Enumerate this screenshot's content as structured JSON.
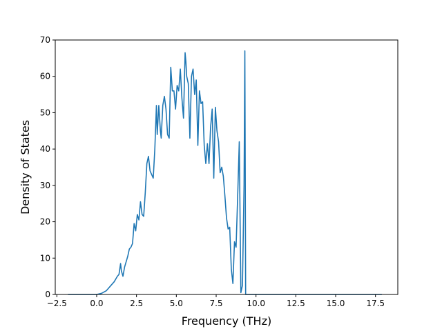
{
  "chart_data": {
    "type": "line",
    "title": "",
    "xlabel": "Frequency (THz)",
    "ylabel": "Density of States",
    "xlim": [
      -2.6,
      18.9
    ],
    "ylim": [
      0,
      70
    ],
    "xticks": [
      -2.5,
      0.0,
      2.5,
      5.0,
      7.5,
      10.0,
      12.5,
      15.0,
      17.5
    ],
    "xtick_labels": [
      "−2.5",
      "0.0",
      "2.5",
      "5.0",
      "7.5",
      "10.0",
      "12.5",
      "15.0",
      "17.5"
    ],
    "yticks": [
      0,
      10,
      20,
      30,
      40,
      50,
      60,
      70
    ],
    "ytick_labels": [
      "0",
      "10",
      "20",
      "30",
      "40",
      "50",
      "60",
      "70"
    ],
    "grid": false,
    "legend": "none",
    "series": [
      {
        "color": "#1f77b4",
        "x": [
          -1.8,
          0.0,
          0.3,
          0.6,
          0.9,
          1.1,
          1.3,
          1.4,
          1.5,
          1.55,
          1.65,
          1.75,
          1.85,
          1.95,
          2.05,
          2.15,
          2.25,
          2.35,
          2.45,
          2.55,
          2.65,
          2.75,
          2.85,
          2.95,
          3.05,
          3.15,
          3.25,
          3.35,
          3.45,
          3.55,
          3.65,
          3.75,
          3.8,
          3.9,
          4.0,
          4.05,
          4.15,
          4.25,
          4.35,
          4.45,
          4.55,
          4.65,
          4.75,
          4.85,
          4.95,
          5.05,
          5.15,
          5.25,
          5.35,
          5.45,
          5.55,
          5.6,
          5.65,
          5.75,
          5.85,
          5.95,
          6.05,
          6.15,
          6.25,
          6.35,
          6.45,
          6.55,
          6.65,
          6.75,
          6.85,
          6.95,
          7.05,
          7.15,
          7.25,
          7.35,
          7.45,
          7.55,
          7.65,
          7.75,
          7.85,
          7.95,
          8.05,
          8.15,
          8.25,
          8.35,
          8.45,
          8.55,
          8.65,
          8.75,
          8.85,
          8.95,
          9.05,
          9.15,
          9.25,
          9.3,
          9.35,
          9.4,
          9.5,
          10.0,
          12.5,
          15.0,
          17.5,
          17.9
        ],
        "y": [
          0,
          0,
          0.3,
          1.0,
          2.5,
          3.5,
          5.0,
          5.5,
          8.5,
          6.5,
          5.0,
          7.5,
          9.0,
          10.5,
          12.5,
          13.0,
          14.0,
          19.5,
          17.5,
          22.0,
          20.5,
          25.5,
          22.0,
          21.5,
          28.0,
          36.0,
          38.0,
          34.0,
          33.0,
          32.0,
          40.0,
          52.0,
          44.0,
          52.0,
          45.0,
          43.0,
          52.0,
          54.5,
          51.0,
          44.0,
          43.0,
          62.5,
          56.0,
          56.0,
          51.0,
          57.5,
          56.0,
          62.0,
          54.0,
          48.5,
          66.5,
          64.0,
          60.0,
          58.0,
          43.0,
          60.0,
          62.0,
          55.0,
          59.0,
          41.0,
          56.0,
          52.5,
          53.0,
          41.0,
          36.0,
          41.5,
          36.0,
          46.0,
          51.0,
          32.0,
          51.5,
          45.0,
          42.0,
          33.5,
          35.0,
          32.5,
          27.0,
          21.0,
          18.0,
          18.5,
          7.0,
          3.0,
          14.5,
          13.0,
          27.0,
          42.0,
          0.5,
          2.5,
          30.0,
          67.0,
          0.0,
          0,
          0,
          0,
          0,
          0,
          0,
          0
        ]
      }
    ]
  }
}
